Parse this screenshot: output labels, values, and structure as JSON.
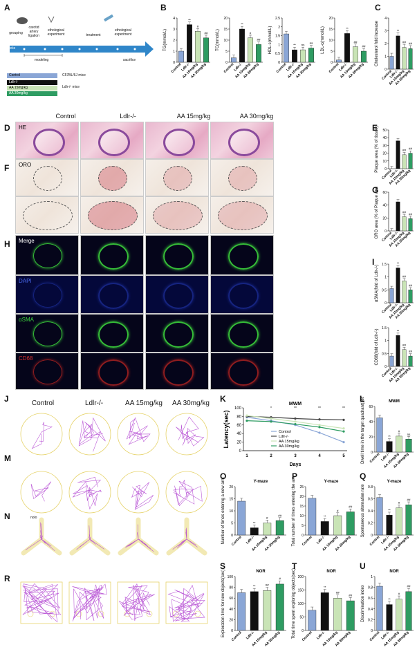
{
  "panels": [
    "A",
    "B",
    "C",
    "D",
    "E",
    "F",
    "G",
    "H",
    "I",
    "J",
    "K",
    "L",
    "M",
    "N",
    "O",
    "P",
    "Q",
    "R",
    "S",
    "T",
    "U"
  ],
  "timeline": {
    "steps": [
      "grouping",
      "carotid artery ligation",
      "ethological experiment",
      "treatment",
      "ethological experiment",
      "sacrifice"
    ],
    "weeks_label": "weeks",
    "modeling": "modeling",
    "legend": [
      "Control",
      "Ldlr-/-",
      "AA 15mg/kg",
      "AA 30mg/kg"
    ],
    "mice": [
      "C57BL/6J mice",
      "Ldlr-/- mice"
    ]
  },
  "groups": [
    "Control",
    "Ldlr-/-",
    "AA 15mg/kg",
    "AA 30mg/kg"
  ],
  "group_short": [
    "Control",
    "Ldlr-/-",
    "AA 15mg/kg",
    "AA 30mg/kg"
  ],
  "colors": {
    "control": "#8aa6d6",
    "ldlr": "#111111",
    "aa15": "#c9e4b6",
    "aa30": "#2e9c62"
  },
  "image_rows": {
    "he": "HE",
    "oro": "ORO",
    "merge": "Merge",
    "dapi": "DAPI",
    "asma": "αSMA",
    "cd68": "CD68"
  },
  "maze_labels": {
    "mwm": "MWM",
    "ymaze": "Y-maze",
    "nor": "NOR",
    "novel": "nolo"
  },
  "chart_data": [
    {
      "panel": "B1",
      "type": "bar",
      "ylabel": "TG(mmol/L)",
      "ylim": [
        0,
        4
      ],
      "yticks": [
        0,
        1,
        2,
        3,
        4
      ],
      "values": [
        1.0,
        3.4,
        2.8,
        2.2
      ],
      "marks": [
        "",
        "**",
        "#",
        "##"
      ]
    },
    {
      "panel": "B2",
      "type": "bar",
      "ylabel": "TC(mmol/L)",
      "ylim": [
        0,
        20
      ],
      "yticks": [
        0,
        5,
        10,
        15,
        20
      ],
      "values": [
        2,
        15,
        11,
        8
      ],
      "marks": [
        "",
        "**",
        "#",
        "##"
      ]
    },
    {
      "panel": "B3",
      "type": "bar",
      "ylabel": "HDL-c(mmol/L)",
      "ylim": [
        0,
        2.5
      ],
      "yticks": [
        0,
        0.5,
        1.0,
        1.5,
        2.0,
        2.5
      ],
      "values": [
        1.6,
        0.7,
        0.7,
        0.8
      ],
      "marks": [
        "",
        "**",
        "ns",
        "ns"
      ]
    },
    {
      "panel": "B4",
      "type": "bar",
      "ylabel": "LDL-c(mmol/L)",
      "ylim": [
        0,
        20
      ],
      "yticks": [
        0,
        5,
        10,
        15,
        20
      ],
      "values": [
        1,
        13,
        7,
        5
      ],
      "marks": [
        "",
        "**",
        "##",
        "##"
      ]
    },
    {
      "panel": "C",
      "type": "bar",
      "ylabel": "Cholesterol fold increase",
      "ylim": [
        0,
        4
      ],
      "yticks": [
        0,
        1,
        2,
        3,
        4
      ],
      "values": [
        1.0,
        2.6,
        1.7,
        1.6
      ],
      "marks": [
        "",
        "**",
        "##",
        "##"
      ]
    },
    {
      "panel": "E",
      "type": "bar",
      "ylabel": "Plaque area (% of tissue)",
      "ylim": [
        0,
        50
      ],
      "yticks": [
        0,
        10,
        20,
        30,
        40,
        50
      ],
      "values": [
        0,
        36,
        18,
        20
      ],
      "marks": [
        "",
        "",
        "##",
        "##"
      ]
    },
    {
      "panel": "G",
      "type": "bar",
      "ylabel": "ORO area (% of Plaque area)",
      "ylim": [
        0,
        60
      ],
      "yticks": [
        0,
        20,
        40,
        60
      ],
      "values": [
        0,
        45,
        22,
        19
      ],
      "marks": [
        "",
        "",
        "##",
        "##"
      ]
    },
    {
      "panel": "I1",
      "type": "bar",
      "ylabel": "αSMA(fold of Ldlr-/-)",
      "ylim": [
        0,
        1.5
      ],
      "yticks": [
        0,
        0.5,
        1.0,
        1.5
      ],
      "values": [
        0.55,
        1.35,
        0.85,
        0.5
      ],
      "marks": [
        "",
        "**",
        "##",
        "##"
      ]
    },
    {
      "panel": "I2",
      "type": "bar",
      "ylabel": "CD68(fold of Ldlr-/-)",
      "ylim": [
        0,
        1.5
      ],
      "yticks": [
        0,
        0.5,
        1.0,
        1.5
      ],
      "values": [
        0.4,
        1.2,
        0.65,
        0.4
      ],
      "marks": [
        "",
        "**",
        "##",
        "##"
      ]
    },
    {
      "panel": "K",
      "type": "line",
      "title": "MWM",
      "xlabel": "Days",
      "ylabel": "Latency(sec)",
      "x": [
        1,
        2,
        3,
        4,
        5
      ],
      "ylim": [
        0,
        100
      ],
      "yticks": [
        0,
        20,
        40,
        60,
        80,
        100
      ],
      "series": [
        {
          "name": "Control",
          "values": [
            78,
            70,
            60,
            42,
            20
          ]
        },
        {
          "name": "Ldlr-/-",
          "values": [
            80,
            78,
            75,
            73,
            72
          ]
        },
        {
          "name": "AA 15mg/kg",
          "values": [
            82,
            75,
            68,
            60,
            52
          ]
        },
        {
          "name": "AA 30mg/kg",
          "values": [
            70,
            68,
            62,
            55,
            45
          ]
        }
      ],
      "marks": [
        "*",
        "**",
        "**",
        "**"
      ]
    },
    {
      "panel": "L",
      "type": "bar",
      "title": "MWM",
      "ylabel": "Dwell time in the target quadrant(sec)",
      "ylim": [
        0,
        60
      ],
      "yticks": [
        0,
        20,
        40,
        60
      ],
      "values": [
        45,
        14,
        21,
        17
      ],
      "marks": [
        "",
        "**",
        "#",
        "ns"
      ]
    },
    {
      "panel": "O",
      "type": "bar",
      "title": "Y-maze",
      "ylabel": "Number of times entering a new arm",
      "ylim": [
        0,
        20
      ],
      "yticks": [
        0,
        5,
        10,
        15,
        20
      ],
      "values": [
        14,
        3,
        5,
        6
      ],
      "marks": [
        "",
        "**",
        "#",
        "##"
      ]
    },
    {
      "panel": "P",
      "type": "bar",
      "title": "Y-maze",
      "ylabel": "Total number of times entering the arm",
      "ylim": [
        0,
        25
      ],
      "yticks": [
        0,
        5,
        10,
        15,
        20,
        25
      ],
      "values": [
        19,
        7,
        10,
        12
      ],
      "marks": [
        "",
        "**",
        "#",
        "##"
      ]
    },
    {
      "panel": "Q",
      "type": "bar",
      "title": "Y-maze",
      "ylabel": "Spontaneous alternation rate",
      "ylim": [
        0,
        0.8
      ],
      "yticks": [
        0,
        0.2,
        0.4,
        0.6,
        0.8
      ],
      "values": [
        0.62,
        0.33,
        0.45,
        0.5
      ],
      "marks": [
        "",
        "**",
        "#",
        "##"
      ]
    },
    {
      "panel": "S",
      "type": "bar",
      "title": "NOR",
      "ylabel": "Exploration time for new objects(sec)",
      "ylim": [
        0,
        100
      ],
      "yticks": [
        0,
        20,
        40,
        60,
        80,
        100
      ],
      "values": [
        70,
        72,
        74,
        86
      ],
      "marks": [
        "",
        "**",
        "##",
        "#"
      ]
    },
    {
      "panel": "T",
      "type": "bar",
      "title": "NOR",
      "ylabel": "Total time spent exploring objects(sec)",
      "ylim": [
        0,
        200
      ],
      "yticks": [
        0,
        50,
        100,
        150,
        200
      ],
      "values": [
        75,
        140,
        120,
        110
      ],
      "marks": [
        "",
        "**",
        "##",
        "##"
      ]
    },
    {
      "panel": "U",
      "type": "bar",
      "title": "NOR",
      "ylabel": "Discrimination index",
      "ylim": [
        0,
        1.0
      ],
      "yticks": [
        0,
        0.2,
        0.4,
        0.6,
        0.8,
        1.0
      ],
      "values": [
        0.82,
        0.48,
        0.58,
        0.72
      ],
      "marks": [
        "",
        "**",
        "#",
        "##"
      ]
    }
  ]
}
